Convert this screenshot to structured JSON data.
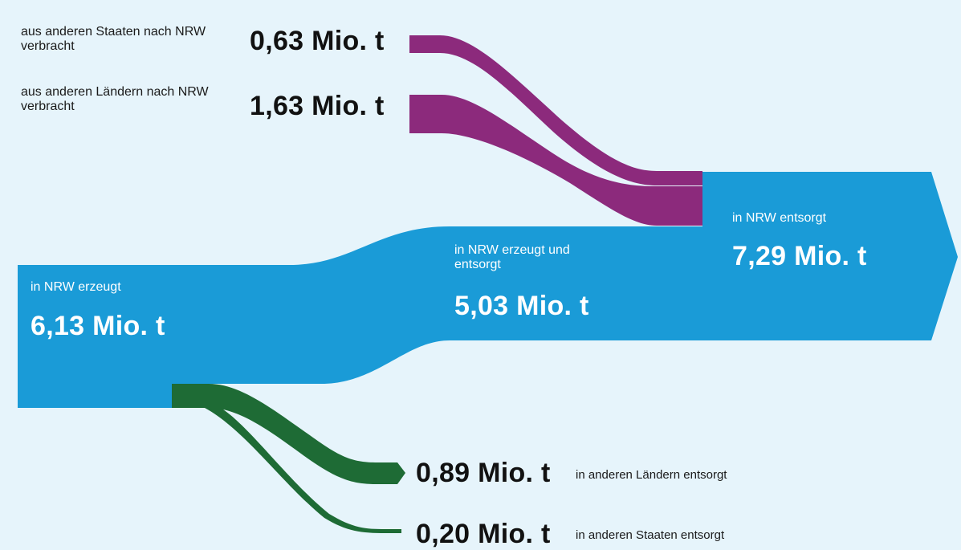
{
  "colors": {
    "background": "#e6f4fb",
    "nrw_flow": "#1a9bd7",
    "import_flow": "#8c2a7c",
    "export_flow": "#1e6b35"
  },
  "labels": {
    "import_states_desc": "aus anderen Staaten nach NRW verbracht",
    "import_states_value": "0,63 Mio. t",
    "import_laender_desc": "aus anderen Ländern nach NRW verbracht",
    "import_laender_value": "1,63 Mio. t",
    "generated_desc": "in NRW erzeugt",
    "generated_value": "6,13 Mio. t",
    "generated_disposed_desc": "in NRW erzeugt und entsorgt",
    "generated_disposed_value": "5,03 Mio. t",
    "disposed_desc": "in NRW entsorgt",
    "disposed_value": "7,29 Mio. t",
    "export_laender_value": "0,89 Mio. t",
    "export_laender_desc": "in anderen Ländern entsorgt",
    "export_states_value": "0,20 Mio. t",
    "export_states_desc": "in anderen Staaten entsorgt"
  }
}
